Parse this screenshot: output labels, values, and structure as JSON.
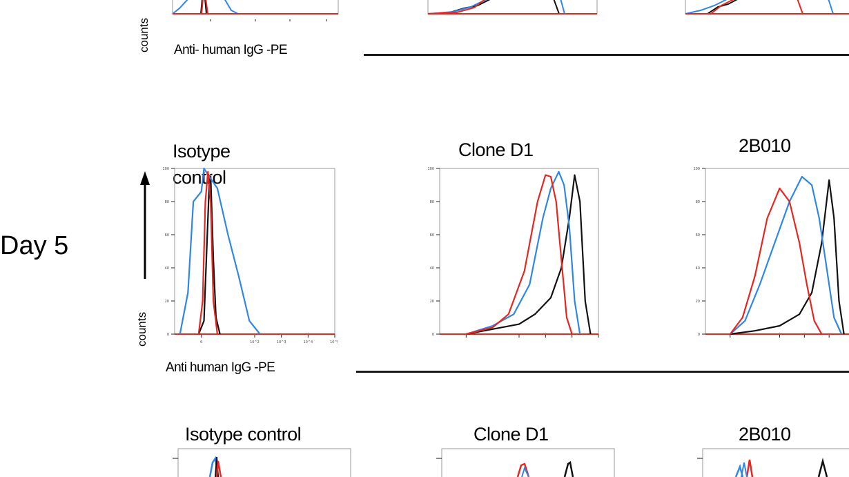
{
  "top_row": {
    "ylabel": "counts",
    "xlabel": "Anti- human IgG -PE"
  },
  "day5_row": {
    "day_label": "Day 5",
    "ylabel": "counts",
    "xlabel": "Anti human IgG  -PE",
    "panel_titles": [
      "Isotype control",
      "Clone D1",
      "2B010"
    ]
  },
  "bottom_row": {
    "panel_titles": [
      "Isotype control",
      "Clone D1",
      "2B010"
    ]
  },
  "colors": {
    "black": "#111111",
    "blue": "#2f86e6",
    "red": "#e8251f"
  },
  "chart_data": [
    {
      "type": "line",
      "title": "Isotype control",
      "xlabel": "Anti human IgG  -PE",
      "ylabel": "counts",
      "x_scale": "log",
      "x_ticks": [
        "0",
        "10^2",
        "10^3",
        "10^4",
        "10^5"
      ],
      "y_ticks": [
        0,
        20,
        40,
        60,
        80,
        100
      ],
      "ylim": [
        0,
        100
      ],
      "series": [
        {
          "color": "#111111",
          "x": [
            -0.1,
            0.1,
            0.2,
            0.3,
            0.35,
            0.45,
            0.55,
            0.7
          ],
          "y": [
            0,
            8,
            50,
            92,
            95,
            45,
            10,
            0
          ]
        },
        {
          "color": "#2f86e6",
          "x": [
            -0.8,
            -0.5,
            -0.3,
            0.0,
            0.1,
            0.3,
            0.6,
            1.0,
            1.4,
            1.8,
            2.2
          ],
          "y": [
            0,
            25,
            80,
            86,
            100,
            95,
            88,
            60,
            35,
            8,
            0
          ]
        },
        {
          "color": "#e8251f",
          "x": [
            -0.1,
            0.05,
            0.15,
            0.25,
            0.35,
            0.45,
            0.6
          ],
          "y": [
            0,
            20,
            80,
            98,
            80,
            20,
            0
          ]
        }
      ]
    },
    {
      "type": "line",
      "title": "Clone D1",
      "x_scale": "log",
      "y_ticks": [
        0,
        20,
        40,
        60,
        80,
        100
      ],
      "ylim": [
        0,
        100
      ],
      "series": [
        {
          "color": "#111111",
          "x": [
            0.0,
            1.0,
            2.0,
            2.6,
            3.2,
            3.6,
            3.9,
            4.1,
            4.3,
            4.5,
            4.7
          ],
          "y": [
            0,
            3,
            6,
            12,
            22,
            40,
            70,
            96,
            80,
            20,
            0
          ]
        },
        {
          "color": "#2f86e6",
          "x": [
            0.0,
            1.0,
            1.8,
            2.4,
            2.9,
            3.2,
            3.5,
            3.7,
            3.9,
            4.1,
            4.3
          ],
          "y": [
            0,
            5,
            12,
            30,
            70,
            88,
            98,
            90,
            65,
            20,
            0
          ]
        },
        {
          "color": "#e8251f",
          "x": [
            0.0,
            1.0,
            1.6,
            2.2,
            2.7,
            3.0,
            3.2,
            3.4,
            3.6,
            3.8,
            4.0
          ],
          "y": [
            0,
            4,
            12,
            38,
            80,
            96,
            95,
            80,
            45,
            10,
            0
          ]
        }
      ]
    },
    {
      "type": "line",
      "title": "2B010",
      "x_scale": "log",
      "y_ticks": [
        0,
        20,
        40,
        60,
        80,
        100
      ],
      "ylim": [
        0,
        100
      ],
      "series": [
        {
          "color": "#111111",
          "x": [
            0.0,
            1.0,
            2.0,
            2.8,
            3.3,
            3.7,
            4.0,
            4.2,
            4.4,
            4.6
          ],
          "y": [
            0,
            2,
            5,
            12,
            25,
            55,
            93,
            70,
            20,
            0
          ]
        },
        {
          "color": "#2f86e6",
          "x": [
            0.0,
            0.6,
            1.2,
            1.8,
            2.4,
            2.9,
            3.3,
            3.6,
            3.9,
            4.2,
            4.5
          ],
          "y": [
            0,
            8,
            30,
            55,
            80,
            95,
            90,
            70,
            40,
            10,
            0
          ]
        },
        {
          "color": "#e8251f",
          "x": [
            0.0,
            0.5,
            1.0,
            1.5,
            2.0,
            2.4,
            2.8,
            3.1,
            3.4,
            3.7
          ],
          "y": [
            0,
            10,
            35,
            70,
            88,
            80,
            55,
            30,
            8,
            0
          ]
        }
      ]
    }
  ]
}
